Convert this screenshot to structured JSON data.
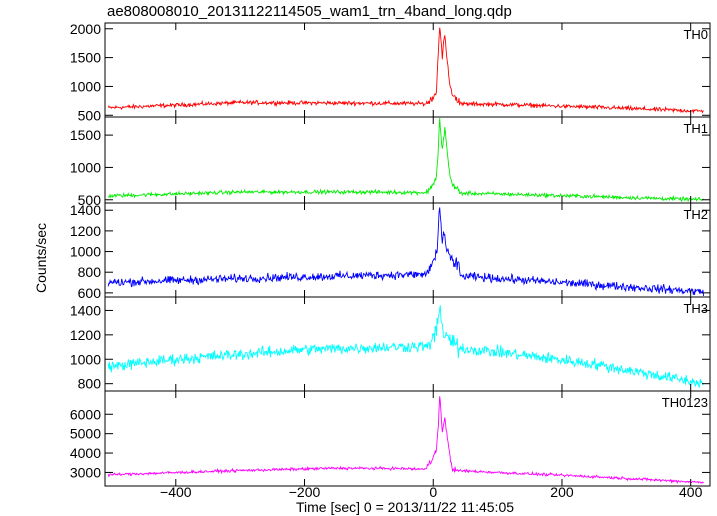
{
  "chart_data": {
    "type": "line",
    "title": "ae808008010_20131122114505_wam1_trn_4band_long.qdp",
    "xlabel": "Time [sec] 0 = 2013/11/22 11:45:05",
    "ylabel": "Counts/sec",
    "xlim": [
      -510,
      430
    ],
    "x_ticks": [
      -400,
      -200,
      0,
      200,
      400
    ],
    "x_tick_labels": [
      "−400",
      "−200",
      "0",
      "200",
      "400"
    ],
    "panels": [
      {
        "name": "TH0",
        "color": "#ff0000",
        "ylim": [
          470,
          2100
        ],
        "y_ticks": [
          500,
          1000,
          1500,
          2000
        ],
        "baseline": [
          [
            -505,
            630
          ],
          [
            -300,
            720
          ],
          [
            -100,
            710
          ],
          [
            0,
            700
          ],
          [
            100,
            690
          ],
          [
            250,
            640
          ],
          [
            420,
            570
          ]
        ],
        "noise": 30,
        "burst": [
          [
            -10,
            700
          ],
          [
            0,
            820
          ],
          [
            5,
            950
          ],
          [
            8,
            1600
          ],
          [
            10,
            2050
          ],
          [
            14,
            1500
          ],
          [
            18,
            1950
          ],
          [
            22,
            1400
          ],
          [
            26,
            1000
          ],
          [
            30,
            850
          ],
          [
            40,
            760
          ]
        ]
      },
      {
        "name": "TH1",
        "color": "#00ee00",
        "ylim": [
          450,
          1780
        ],
        "y_ticks": [
          500,
          1000,
          1500
        ],
        "baseline": [
          [
            -505,
            560
          ],
          [
            -300,
            620
          ],
          [
            -100,
            620
          ],
          [
            0,
            610
          ],
          [
            100,
            590
          ],
          [
            250,
            550
          ],
          [
            420,
            500
          ]
        ],
        "noise": 25,
        "burst": [
          [
            -10,
            620
          ],
          [
            0,
            750
          ],
          [
            5,
            850
          ],
          [
            8,
            1300
          ],
          [
            10,
            1750
          ],
          [
            14,
            1250
          ],
          [
            18,
            1600
          ],
          [
            22,
            1200
          ],
          [
            26,
            900
          ],
          [
            30,
            720
          ],
          [
            40,
            640
          ]
        ]
      },
      {
        "name": "TH2",
        "color": "#0000ff",
        "ylim": [
          560,
          1470
        ],
        "y_ticks": [
          600,
          800,
          1000,
          1200,
          1400
        ],
        "baseline": [
          [
            -505,
            700
          ],
          [
            -300,
            740
          ],
          [
            -100,
            770
          ],
          [
            0,
            780
          ],
          [
            100,
            740
          ],
          [
            250,
            680
          ],
          [
            420,
            610
          ]
        ],
        "noise": 35,
        "burst": [
          [
            -10,
            800
          ],
          [
            0,
            900
          ],
          [
            5,
            950
          ],
          [
            8,
            1200
          ],
          [
            10,
            1450
          ],
          [
            14,
            1100
          ],
          [
            18,
            1150
          ],
          [
            22,
            1000
          ],
          [
            30,
            900
          ],
          [
            40,
            850
          ]
        ]
      },
      {
        "name": "TH3",
        "color": "#00ffff",
        "ylim": [
          740,
          1510
        ],
        "y_ticks": [
          800,
          1000,
          1200,
          1400
        ],
        "baseline": [
          [
            -505,
            940
          ],
          [
            -400,
            1000
          ],
          [
            -200,
            1080
          ],
          [
            0,
            1110
          ],
          [
            100,
            1060
          ],
          [
            250,
            960
          ],
          [
            420,
            800
          ]
        ],
        "noise": 40,
        "burst": [
          [
            -10,
            1100
          ],
          [
            0,
            1180
          ],
          [
            5,
            1200
          ],
          [
            8,
            1300
          ],
          [
            10,
            1480
          ],
          [
            14,
            1250
          ],
          [
            18,
            1200
          ],
          [
            25,
            1150
          ],
          [
            40,
            1100
          ]
        ]
      },
      {
        "name": "TH0123",
        "color": "#ff00ff",
        "ylim": [
          2300,
          7200
        ],
        "y_ticks": [
          3000,
          4000,
          5000,
          6000
        ],
        "baseline": [
          [
            -505,
            2880
          ],
          [
            -300,
            3100
          ],
          [
            -150,
            3220
          ],
          [
            -50,
            3200
          ],
          [
            0,
            3150
          ],
          [
            100,
            3000
          ],
          [
            250,
            2780
          ],
          [
            420,
            2480
          ]
        ],
        "noise": 60,
        "burst": [
          [
            -10,
            3300
          ],
          [
            0,
            3800
          ],
          [
            5,
            4200
          ],
          [
            8,
            5500
          ],
          [
            10,
            7000
          ],
          [
            14,
            5100
          ],
          [
            18,
            5800
          ],
          [
            22,
            4800
          ],
          [
            26,
            3800
          ],
          [
            30,
            3200
          ],
          [
            40,
            3100
          ]
        ]
      }
    ]
  }
}
